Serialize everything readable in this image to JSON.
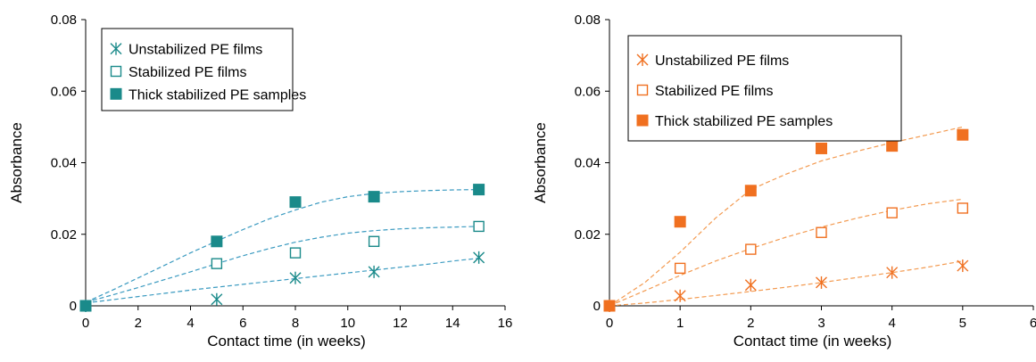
{
  "chart_data": [
    {
      "type": "scatter",
      "title": "",
      "xlabel": "Contact time (in weeks)",
      "ylabel": "Absorbance",
      "xlim": [
        0,
        16
      ],
      "ylim": [
        0,
        0.08
      ],
      "xticks": [
        "0",
        "2",
        "4",
        "6",
        "8",
        "10",
        "12",
        "14",
        "16"
      ],
      "yticks": [
        "0",
        "0.02",
        "0.04",
        "0.06",
        "0.08"
      ],
      "color": "#1a8a8a",
      "trendline_color": "#3a9ac0",
      "legend_position": "top-left",
      "grid": false,
      "series": [
        {
          "name": "Unstabilized PE films",
          "marker": "asterisk",
          "x": [
            0,
            5,
            8,
            11,
            15
          ],
          "y": [
            0,
            0.0018,
            0.0078,
            0.0095,
            0.0135
          ],
          "trend_x": [
            0,
            1,
            2,
            3,
            4,
            5,
            6,
            7,
            8,
            9,
            10,
            11,
            12,
            13,
            14,
            15
          ],
          "trend_y": [
            0.0008,
            0.0017,
            0.0026,
            0.0035,
            0.0044,
            0.0052,
            0.006,
            0.0068,
            0.0076,
            0.0084,
            0.0092,
            0.01,
            0.0108,
            0.0116,
            0.0125,
            0.0133
          ]
        },
        {
          "name": "Stabilized PE films",
          "marker": "open-square",
          "x": [
            0,
            5,
            8,
            11,
            15
          ],
          "y": [
            0,
            0.0118,
            0.0148,
            0.018,
            0.0222
          ],
          "trend_x": [
            0,
            1,
            2,
            3,
            4,
            5,
            6,
            7,
            8,
            9,
            10,
            11,
            12,
            13,
            14,
            15
          ],
          "trend_y": [
            0.001,
            0.003,
            0.0051,
            0.0073,
            0.0095,
            0.0118,
            0.014,
            0.016,
            0.0178,
            0.0192,
            0.0203,
            0.021,
            0.0215,
            0.0218,
            0.022,
            0.0222
          ]
        },
        {
          "name": "Thick stabilized PE samples",
          "marker": "filled-square",
          "x": [
            0,
            5,
            8,
            11,
            15
          ],
          "y": [
            0,
            0.018,
            0.029,
            0.0305,
            0.0325
          ],
          "trend_x": [
            0,
            1,
            2,
            3,
            4,
            5,
            6,
            7,
            8,
            9,
            10,
            11,
            12,
            13,
            14,
            15
          ],
          "trend_y": [
            0.001,
            0.0043,
            0.0078,
            0.0113,
            0.0148,
            0.0181,
            0.0213,
            0.0243,
            0.0268,
            0.029,
            0.0305,
            0.0314,
            0.0319,
            0.0322,
            0.0324,
            0.0325
          ]
        }
      ]
    },
    {
      "type": "scatter",
      "title": "",
      "xlabel": "Contact time (in weeks)",
      "ylabel": "Absorbance",
      "xlim": [
        0,
        6
      ],
      "ylim": [
        0,
        0.08
      ],
      "xticks": [
        "0",
        "1",
        "2",
        "3",
        "4",
        "5",
        "6"
      ],
      "yticks": [
        "0",
        "0.02",
        "0.04",
        "0.06",
        "0.08"
      ],
      "color": "#f07020",
      "trendline_color": "#f39a50",
      "legend_position": "top-left",
      "grid": false,
      "series": [
        {
          "name": "Unstabilized PE films",
          "marker": "asterisk",
          "x": [
            0,
            1,
            2,
            3,
            4,
            5
          ],
          "y": [
            0,
            0.0028,
            0.0058,
            0.0065,
            0.0093,
            0.0112
          ],
          "trend_x": [
            0,
            0.5,
            1,
            1.5,
            2,
            2.5,
            3,
            3.5,
            4,
            4.5,
            5
          ],
          "trend_y": [
            0,
            0.0008,
            0.0018,
            0.0029,
            0.004,
            0.0052,
            0.0065,
            0.0079,
            0.0093,
            0.0108,
            0.0125
          ]
        },
        {
          "name": "Stabilized PE films",
          "marker": "open-square",
          "x": [
            0,
            1,
            2,
            3,
            4,
            5
          ],
          "y": [
            0,
            0.0105,
            0.0158,
            0.0205,
            0.026,
            0.0273
          ],
          "trend_x": [
            0,
            0.5,
            1,
            1.5,
            2,
            2.5,
            3,
            3.5,
            4,
            4.5,
            5
          ],
          "trend_y": [
            0,
            0.0042,
            0.0085,
            0.0125,
            0.016,
            0.0192,
            0.022,
            0.0245,
            0.0267,
            0.0285,
            0.0298
          ]
        },
        {
          "name": "Thick stabilized PE samples",
          "marker": "filled-square",
          "x": [
            0,
            1,
            2,
            3,
            4,
            5
          ],
          "y": [
            0,
            0.0235,
            0.0322,
            0.044,
            0.0447,
            0.0478
          ],
          "trend_x": [
            0,
            0.5,
            1,
            1.5,
            2,
            2.5,
            3,
            3.5,
            4,
            4.5,
            5
          ],
          "trend_y": [
            0,
            0.0065,
            0.015,
            0.0245,
            0.0325,
            0.0368,
            0.0405,
            0.0432,
            0.0456,
            0.0478,
            0.05
          ]
        }
      ]
    }
  ]
}
